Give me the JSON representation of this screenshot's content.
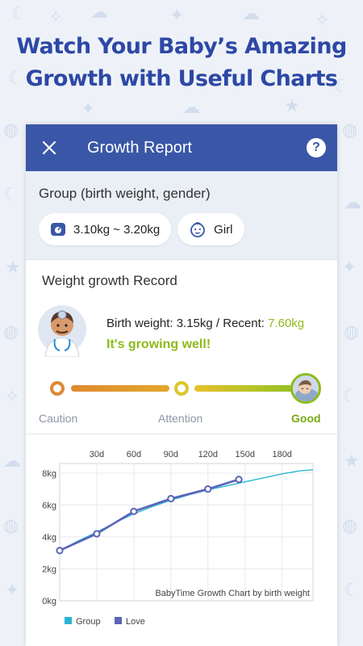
{
  "headline": {
    "line1": "Watch Your Baby’s Amazing",
    "line2": "Growth with Useful Charts"
  },
  "appbar": {
    "close_icon": "close-icon",
    "title": "Growth Report",
    "help_label": "?"
  },
  "group": {
    "label": "Group (birth weight, gender)",
    "weight_range": "3.10kg ~ 3.20kg",
    "gender": "Girl",
    "weight_icon": "scale-icon",
    "gender_icon": "baby-face-icon"
  },
  "record": {
    "title": "Weight growth Record",
    "birth_weight_text": "Birth weight: 3.15kg / Recent: ",
    "recent_value": "7.60kg",
    "status": "It's growing well!",
    "scale_labels": {
      "caution": "Caution",
      "attention": "Attention",
      "good": "Good"
    },
    "level": "good"
  },
  "colors": {
    "brand": "#3a57a7",
    "good": "#8cbb1a",
    "group_series": "#29b6d3",
    "love_series": "#5a64b8"
  },
  "chart_data": {
    "type": "line",
    "title": "BabyTime Growth Chart by birth weight",
    "x_ticks": [
      "30d",
      "60d",
      "90d",
      "120d",
      "150d",
      "180d"
    ],
    "x_tick_values": [
      30,
      60,
      90,
      120,
      150,
      180
    ],
    "y_ticks": [
      "0kg",
      "2kg",
      "4kg",
      "6kg",
      "8kg"
    ],
    "y_tick_values": [
      0,
      2,
      4,
      6,
      8
    ],
    "xlim": [
      0,
      205
    ],
    "ylim": [
      0,
      8.6
    ],
    "grid": true,
    "legend_position": "bottom-left",
    "series": [
      {
        "name": "Group",
        "color": "#29b6d3",
        "x": [
          0,
          15,
          30,
          45,
          60,
          75,
          90,
          105,
          120,
          135,
          150,
          165,
          180,
          195,
          205
        ],
        "y": [
          3.15,
          3.75,
          4.3,
          4.9,
          5.45,
          5.9,
          6.3,
          6.65,
          6.95,
          7.2,
          7.45,
          7.7,
          7.95,
          8.15,
          8.2
        ]
      },
      {
        "name": "Love",
        "color": "#5a64b8",
        "x": [
          0,
          30,
          60,
          90,
          120,
          145
        ],
        "y": [
          3.15,
          4.2,
          5.6,
          6.4,
          7.0,
          7.6
        ]
      }
    ]
  }
}
